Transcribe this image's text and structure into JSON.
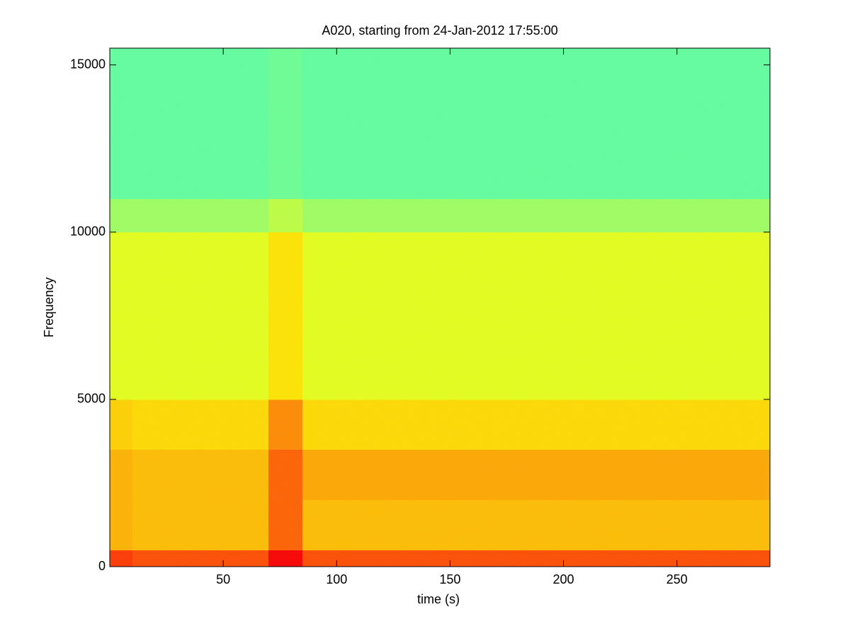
{
  "chart_data": {
    "type": "heatmap",
    "title": "A020, starting from 24-Jan-2012 17:55:00",
    "x_label": "time (s)",
    "y_label": "Frequency",
    "x_edges": [
      0,
      10,
      70,
      85,
      291
    ],
    "y_edges": [
      0,
      500,
      2000,
      3500,
      5000,
      10000,
      11000,
      15500
    ],
    "z": [
      [
        0.82,
        0.8,
        0.88,
        0.8
      ],
      [
        0.7,
        0.69,
        0.78,
        0.69
      ],
      [
        0.7,
        0.69,
        0.78,
        0.71
      ],
      [
        0.67,
        0.66,
        0.74,
        0.66
      ],
      [
        0.6,
        0.6,
        0.65,
        0.6
      ],
      [
        0.53,
        0.53,
        0.56,
        0.53
      ],
      [
        0.47,
        0.47,
        0.48,
        0.47
      ]
    ],
    "colormap": "jet",
    "clim": [
      0,
      1
    ],
    "xlim": [
      0,
      291
    ],
    "ylim": [
      0,
      15500
    ],
    "xticks": [
      50,
      100,
      150,
      200,
      250
    ],
    "yticks": [
      0,
      5000,
      10000,
      15000
    ]
  }
}
